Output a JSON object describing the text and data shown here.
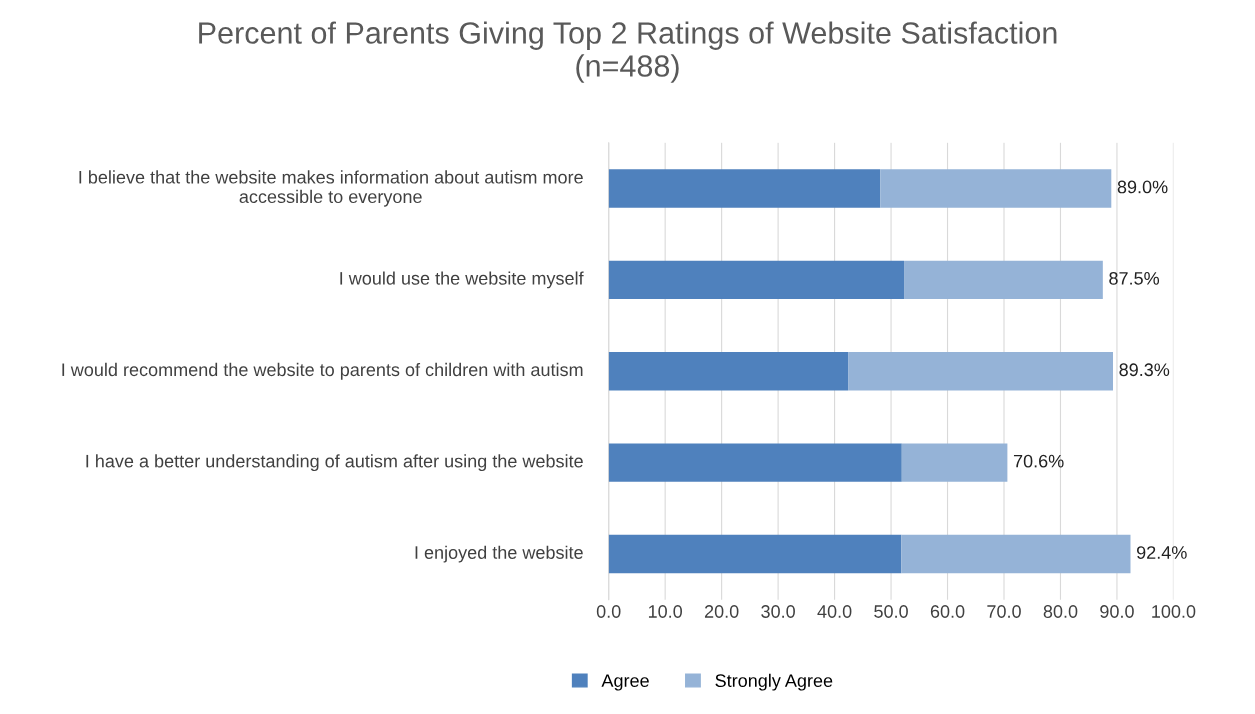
{
  "chart_data": {
    "type": "bar",
    "orientation": "horizontal",
    "stacked": true,
    "title": "Percent of Parents Giving Top 2 Ratings of Website Satisfaction\n(n=488)",
    "categories": [
      "I believe that the website makes information about autism more accessible to everyone",
      "I would use the website myself",
      "I would recommend the website to parents of children with autism",
      "I have a better understanding of autism after using the website",
      "I enjoyed the website"
    ],
    "series": [
      {
        "name": "Agree",
        "color": "#4f81bd",
        "values": [
          48.1,
          52.3,
          42.4,
          51.9,
          51.8
        ]
      },
      {
        "name": "Strongly Agree",
        "color": "#95b3d7",
        "values": [
          40.9,
          35.2,
          46.9,
          18.7,
          40.6
        ]
      }
    ],
    "totals": [
      "89.0%",
      "87.5%",
      "89.3%",
      "70.6%",
      "92.4%"
    ],
    "xlim": [
      0,
      100
    ],
    "xticks": [
      {
        "value": 0,
        "label": "0.0"
      },
      {
        "value": 10,
        "label": "10.0"
      },
      {
        "value": 20,
        "label": "20.0"
      },
      {
        "value": 30,
        "label": "30.0"
      },
      {
        "value": 40,
        "label": "40.0"
      },
      {
        "value": 50,
        "label": "50.0"
      },
      {
        "value": 60,
        "label": "60.0"
      },
      {
        "value": 70,
        "label": "70.0"
      },
      {
        "value": 80,
        "label": "80.0"
      },
      {
        "value": 90,
        "label": "90.0"
      },
      {
        "value": 100,
        "label": "100.0"
      }
    ],
    "grid": "x",
    "legend": "bottom"
  }
}
